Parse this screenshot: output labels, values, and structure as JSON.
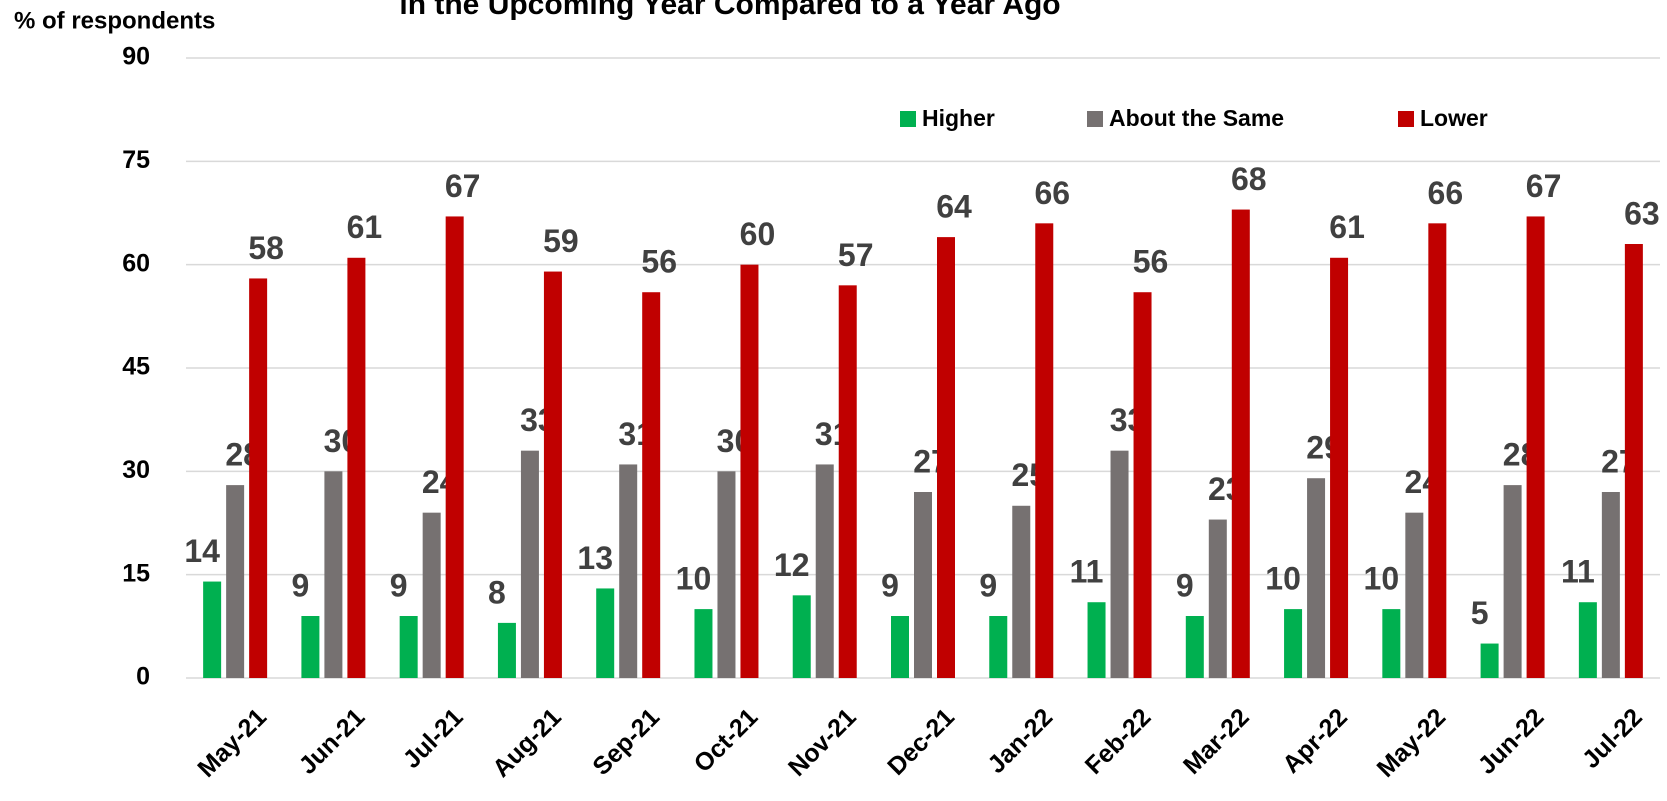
{
  "chart_data": {
    "type": "bar",
    "title": "in the Upcoming Year Compared to a Year Ago",
    "y_label": "% of respondents",
    "categories": [
      "May-21",
      "Jun-21",
      "Jul-21",
      "Aug-21",
      "Sep-21",
      "Oct-21",
      "Nov-21",
      "Dec-21",
      "Jan-22",
      "Feb-22",
      "Mar-22",
      "Apr-22",
      "May-22",
      "Jun-22",
      "Jul-22"
    ],
    "series": [
      {
        "name": "Higher",
        "color": "#00b050",
        "values": [
          14,
          9,
          9,
          8,
          13,
          10,
          12,
          9,
          9,
          11,
          9,
          10,
          10,
          5,
          11
        ]
      },
      {
        "name": "About the Same",
        "color": "#767171",
        "values": [
          28,
          30,
          24,
          33,
          31,
          30,
          31,
          27,
          25,
          33,
          23,
          29,
          24,
          28,
          27
        ]
      },
      {
        "name": "Lower",
        "color": "#c00000",
        "values": [
          58,
          61,
          67,
          59,
          56,
          60,
          57,
          64,
          66,
          56,
          68,
          61,
          66,
          67,
          63
        ]
      }
    ],
    "ylim": [
      0,
      90
    ],
    "yticks": [
      0,
      15,
      30,
      45,
      60,
      75,
      90
    ],
    "grid": true,
    "legend": "top"
  }
}
